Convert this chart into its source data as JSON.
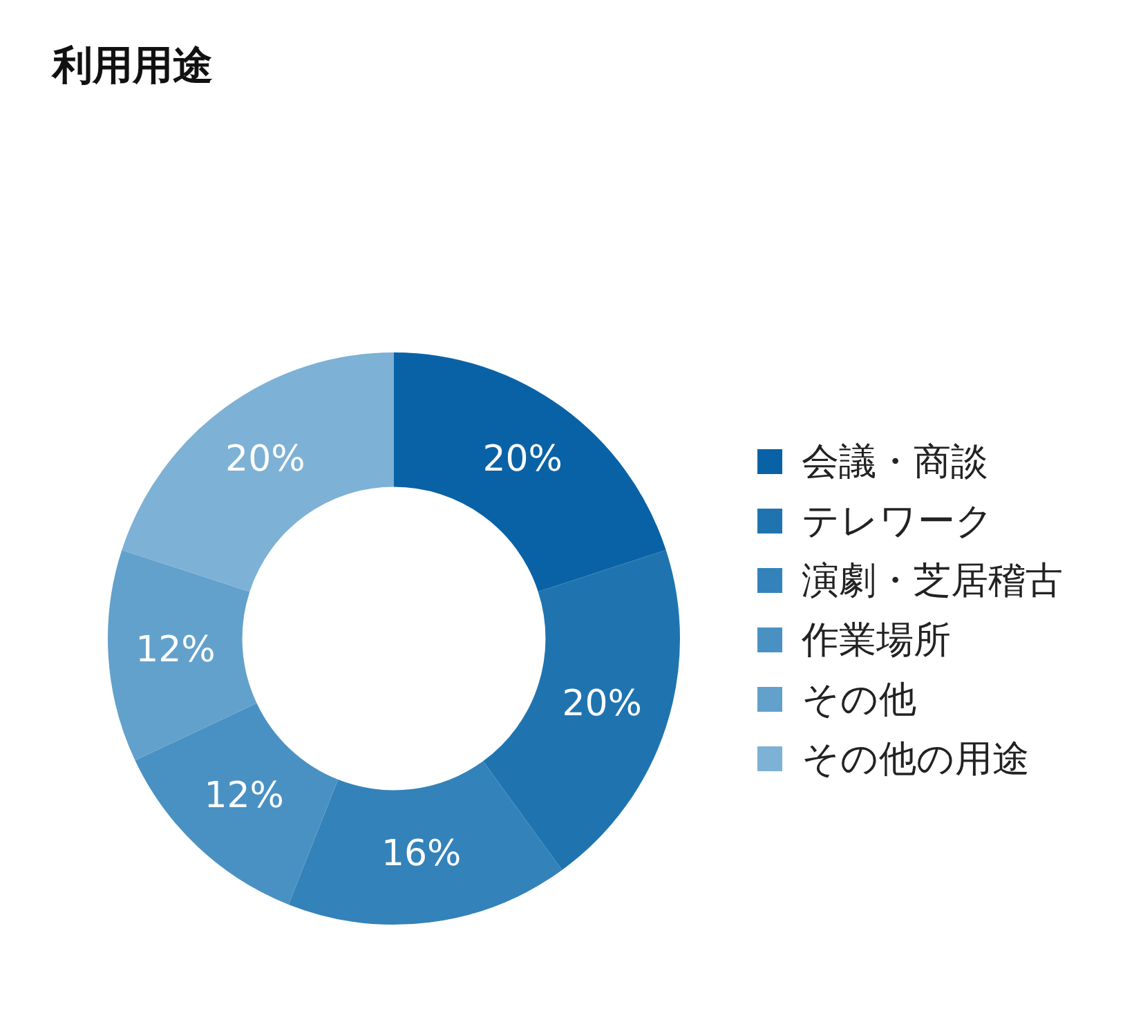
{
  "chart_data": {
    "type": "donut",
    "title": "利用用途",
    "categories": [
      "会議・商談",
      "テレワーク",
      "演劇・芝居稽古",
      "作業場所",
      "その他",
      "その他の用途"
    ],
    "values": [
      20,
      20,
      16,
      12,
      12,
      20
    ],
    "colors": [
      "#0a62a6",
      "#1f74b0",
      "#3382ba",
      "#4a91c3",
      "#62a1cc",
      "#7db1d5"
    ],
    "value_labels": [
      "20%",
      "20%",
      "16%",
      "12%",
      "12%",
      "20%"
    ],
    "legend": "right"
  }
}
